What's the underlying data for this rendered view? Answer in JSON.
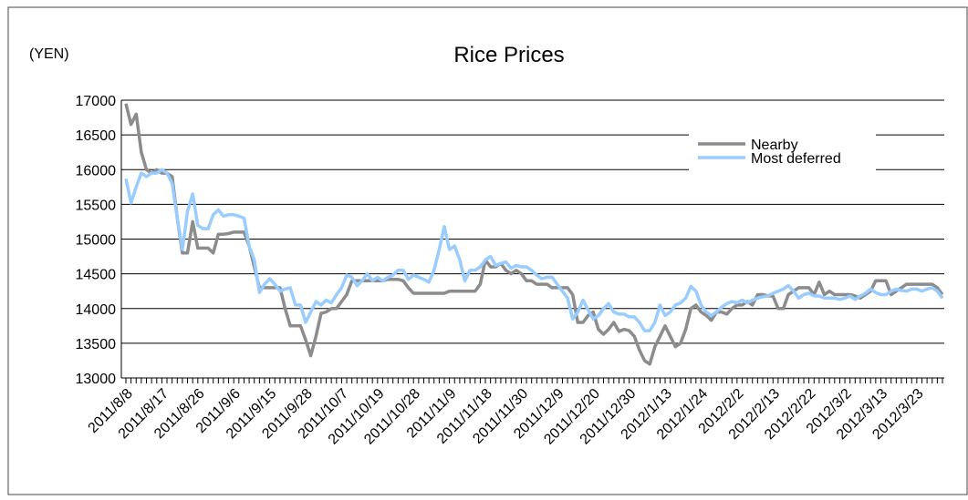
{
  "chart_data": {
    "type": "line",
    "title": "Rice Prices",
    "y_label": "(YEN)",
    "categories": [
      "2011/8/8",
      null,
      null,
      null,
      null,
      null,
      null,
      "2011/8/17",
      null,
      null,
      null,
      null,
      null,
      null,
      "2011/8/26",
      null,
      null,
      null,
      null,
      null,
      null,
      "2011/9/6",
      null,
      null,
      null,
      null,
      null,
      null,
      "2011/9/15",
      null,
      null,
      null,
      null,
      null,
      null,
      "2011/9/28",
      null,
      null,
      null,
      null,
      null,
      null,
      "2011/10/7",
      null,
      null,
      null,
      null,
      null,
      null,
      "2011/10/19",
      null,
      null,
      null,
      null,
      null,
      null,
      "2011/10/28",
      null,
      null,
      null,
      null,
      null,
      null,
      "2011/11/9",
      null,
      null,
      null,
      null,
      null,
      null,
      "2011/11/18",
      null,
      null,
      null,
      null,
      null,
      null,
      "2011/11/30",
      null,
      null,
      null,
      null,
      null,
      null,
      "2011/12/9",
      null,
      null,
      null,
      null,
      null,
      null,
      "2011/12/20",
      null,
      null,
      null,
      null,
      null,
      null,
      "2011/12/30",
      null,
      null,
      null,
      null,
      null,
      null,
      "2012/1/13",
      null,
      null,
      null,
      null,
      null,
      null,
      "2012/1/24",
      null,
      null,
      null,
      null,
      null,
      null,
      "2012/2/2",
      null,
      null,
      null,
      null,
      null,
      null,
      "2012/2/13",
      null,
      null,
      null,
      null,
      null,
      null,
      "2012/2/22",
      null,
      null,
      null,
      null,
      null,
      null,
      "2012/3/2",
      null,
      null,
      null,
      null,
      null,
      null,
      "2012/3/13",
      null,
      null,
      null,
      null,
      null,
      null,
      "2012/3/23",
      null,
      null,
      null,
      null,
      null
    ],
    "series": [
      {
        "name": "Nearby",
        "color": "#8c8c8c",
        "values": [
          16950,
          16650,
          16800,
          16250,
          16000,
          15950,
          16000,
          15950,
          15950,
          15900,
          15300,
          14800,
          14800,
          15250,
          14870,
          14870,
          14870,
          14800,
          15070,
          15070,
          15080,
          15100,
          15100,
          15100,
          14900,
          14600,
          14300,
          14300,
          14300,
          14300,
          14300,
          14000,
          13750,
          13750,
          13750,
          13550,
          13320,
          13600,
          13930,
          13950,
          14000,
          14000,
          14100,
          14200,
          14400,
          14400,
          14400,
          14400,
          14400,
          14400,
          14400,
          14420,
          14420,
          14420,
          14400,
          14300,
          14220,
          14220,
          14220,
          14220,
          14220,
          14220,
          14220,
          14250,
          14250,
          14250,
          14250,
          14250,
          14250,
          14350,
          14700,
          14600,
          14600,
          14650,
          14550,
          14500,
          14550,
          14500,
          14400,
          14400,
          14350,
          14350,
          14350,
          14300,
          14300,
          14300,
          14300,
          14200,
          13800,
          13800,
          13900,
          13950,
          13700,
          13630,
          13700,
          13800,
          13670,
          13700,
          13680,
          13600,
          13400,
          13250,
          13200,
          13450,
          13600,
          13750,
          13600,
          13450,
          13500,
          13700,
          14000,
          14050,
          13950,
          13900,
          13830,
          13950,
          13950,
          13920,
          14000,
          14050,
          14050,
          14100,
          14050,
          14200,
          14200,
          14180,
          14180,
          14000,
          14000,
          14200,
          14250,
          14300,
          14300,
          14300,
          14200,
          14380,
          14200,
          14250,
          14200,
          14200,
          14200,
          14200,
          14180,
          14150,
          14200,
          14250,
          14400,
          14400,
          14400,
          14200,
          14250,
          14300,
          14350,
          14350,
          14350,
          14350,
          14350,
          14350,
          14300,
          14200
        ]
      },
      {
        "name": "Most deferred",
        "color": "#99ccff",
        "values": [
          15870,
          15520,
          15750,
          15950,
          15900,
          15950,
          15950,
          16000,
          15950,
          15800,
          15300,
          14850,
          15400,
          15650,
          15200,
          15150,
          15150,
          15350,
          15420,
          15330,
          15350,
          15350,
          15330,
          15300,
          14900,
          14700,
          14230,
          14350,
          14430,
          14350,
          14250,
          14280,
          14300,
          14050,
          14050,
          13800,
          13950,
          14100,
          14050,
          14120,
          14080,
          14200,
          14300,
          14480,
          14450,
          14330,
          14400,
          14500,
          14400,
          14450,
          14400,
          14450,
          14480,
          14550,
          14550,
          14420,
          14480,
          14450,
          14420,
          14380,
          14550,
          14850,
          15180,
          14850,
          14900,
          14700,
          14400,
          14550,
          14550,
          14600,
          14700,
          14750,
          14620,
          14650,
          14670,
          14580,
          14620,
          14600,
          14600,
          14550,
          14480,
          14430,
          14450,
          14450,
          14350,
          14250,
          14150,
          13850,
          13950,
          14120,
          13980,
          13850,
          13900,
          14000,
          14070,
          13950,
          13920,
          13920,
          13880,
          13880,
          13800,
          13680,
          13680,
          13800,
          14050,
          13900,
          13950,
          14050,
          14080,
          14150,
          14320,
          14250,
          14050,
          13950,
          13900,
          13950,
          14020,
          14070,
          14100,
          14080,
          14120,
          14080,
          14120,
          14150,
          14170,
          14180,
          14220,
          14250,
          14280,
          14330,
          14250,
          14150,
          14200,
          14220,
          14180,
          14180,
          14150,
          14150,
          14150,
          14130,
          14150,
          14180,
          14130,
          14180,
          14220,
          14280,
          14230,
          14200,
          14200,
          14250,
          14280,
          14260,
          14250,
          14280,
          14280,
          14250,
          14280,
          14300,
          14250,
          14150
        ]
      }
    ],
    "ylim": [
      13000,
      17000
    ],
    "yticks": [
      13000,
      13500,
      14000,
      14500,
      15000,
      15500,
      16000,
      16500,
      17000
    ],
    "grid": true,
    "legend": "upper right"
  }
}
